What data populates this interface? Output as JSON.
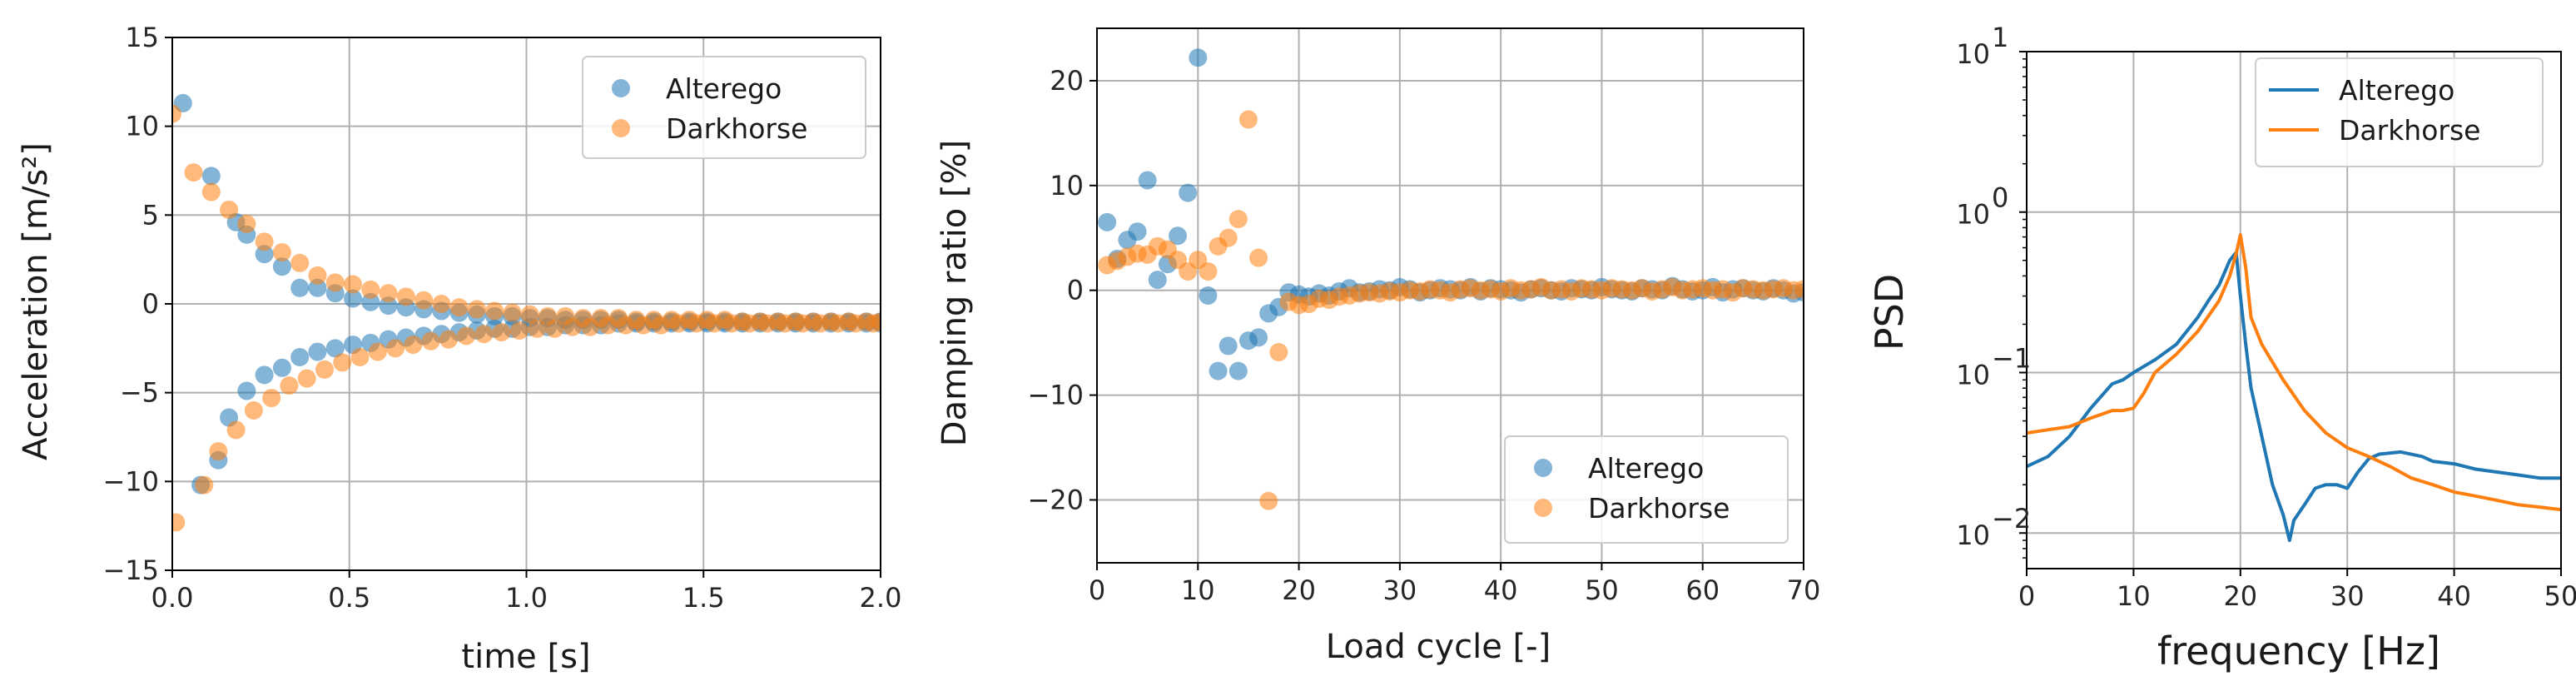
{
  "colors": {
    "alterego": "#1f77b4",
    "darkhorse": "#ff7f0e"
  },
  "chart_data": [
    {
      "type": "scatter",
      "xlabel": "time [s]",
      "ylabel": "Acceleration [m/s²]",
      "xlim": [
        0,
        2.0
      ],
      "ylim": [
        -15,
        15
      ],
      "xticks": [
        "0.0",
        "0.5",
        "1.0",
        "1.5",
        "2.0"
      ],
      "yticks": [
        "−15",
        "−10",
        "−5",
        "0",
        "5",
        "10",
        "15"
      ],
      "grid": true,
      "legend": {
        "position": "top-right",
        "entries": [
          "Alterego",
          "Darkhorse"
        ]
      },
      "series": [
        {
          "name": "Alterego",
          "x": [
            0.03,
            0.11,
            0.18,
            0.21,
            0.26,
            0.31,
            0.36,
            0.41,
            0.46,
            0.51,
            0.56,
            0.61,
            0.66,
            0.71,
            0.76,
            0.81,
            0.86,
            0.91,
            0.96,
            1.01,
            1.06,
            1.11,
            1.16,
            1.21,
            1.26,
            1.31,
            1.36,
            1.41,
            1.46,
            1.51,
            1.56,
            1.61,
            1.66,
            1.71,
            1.76,
            1.81,
            1.86,
            1.91,
            1.96,
            2.0,
            0.08,
            0.13,
            0.16,
            0.21,
            0.26,
            0.31,
            0.36,
            0.41,
            0.46,
            0.51,
            0.56,
            0.61,
            0.66,
            0.71,
            0.76,
            0.81,
            0.86,
            0.91,
            0.96,
            1.01,
            1.06,
            1.11,
            1.16,
            1.21,
            1.26,
            1.31,
            1.36,
            1.41,
            1.46,
            1.51,
            1.56,
            1.61,
            1.66,
            1.71,
            1.76,
            1.81,
            1.86,
            1.91,
            1.96,
            2.0
          ],
          "y": [
            11.3,
            7.2,
            4.6,
            3.9,
            2.8,
            2.1,
            0.9,
            0.9,
            0.6,
            0.3,
            0.1,
            -0.1,
            -0.2,
            -0.3,
            -0.4,
            -0.5,
            -0.6,
            -0.7,
            -0.7,
            -0.8,
            -0.8,
            -0.9,
            -0.9,
            -0.9,
            -0.9,
            -1.0,
            -1.0,
            -1.0,
            -1.0,
            -1.0,
            -1.0,
            -1.0,
            -1.0,
            -1.0,
            -1.0,
            -1.0,
            -1.0,
            -1.0,
            -1.0,
            -1.0,
            -10.2,
            -8.8,
            -6.4,
            -4.9,
            -4.0,
            -3.6,
            -3.0,
            -2.7,
            -2.5,
            -2.3,
            -2.2,
            -2.0,
            -1.9,
            -1.8,
            -1.7,
            -1.6,
            -1.5,
            -1.4,
            -1.4,
            -1.3,
            -1.3,
            -1.2,
            -1.2,
            -1.2,
            -1.1,
            -1.1,
            -1.1,
            -1.1,
            -1.1,
            -1.1,
            -1.1,
            -1.1,
            -1.1,
            -1.1,
            -1.1,
            -1.1,
            -1.1,
            -1.1,
            -1.1,
            -1.1
          ]
        },
        {
          "name": "Darkhorse",
          "x": [
            0.0,
            0.06,
            0.11,
            0.16,
            0.21,
            0.26,
            0.31,
            0.36,
            0.41,
            0.46,
            0.51,
            0.56,
            0.61,
            0.66,
            0.71,
            0.76,
            0.81,
            0.86,
            0.91,
            0.96,
            1.01,
            1.06,
            1.11,
            1.16,
            1.21,
            1.26,
            1.31,
            1.36,
            1.41,
            1.46,
            1.51,
            1.56,
            1.61,
            1.66,
            1.71,
            1.76,
            1.81,
            1.86,
            1.91,
            1.96,
            2.0,
            0.01,
            0.09,
            0.13,
            0.18,
            0.23,
            0.28,
            0.33,
            0.38,
            0.43,
            0.48,
            0.53,
            0.58,
            0.63,
            0.68,
            0.73,
            0.78,
            0.83,
            0.88,
            0.93,
            0.98,
            1.03,
            1.08,
            1.13,
            1.18,
            1.23,
            1.28,
            1.33,
            1.38,
            1.43,
            1.48,
            1.53,
            1.58,
            1.63,
            1.68,
            1.73,
            1.78,
            1.83,
            1.88,
            1.93,
            1.98
          ],
          "y": [
            10.7,
            7.4,
            6.3,
            5.3,
            4.5,
            3.5,
            2.9,
            2.3,
            1.6,
            1.2,
            1.1,
            0.8,
            0.6,
            0.4,
            0.2,
            0.0,
            -0.2,
            -0.3,
            -0.4,
            -0.5,
            -0.6,
            -0.7,
            -0.7,
            -0.8,
            -0.8,
            -0.8,
            -0.9,
            -0.9,
            -0.9,
            -0.9,
            -0.9,
            -0.9,
            -1.0,
            -1.0,
            -1.0,
            -1.0,
            -1.0,
            -1.0,
            -1.0,
            -1.0,
            -1.0,
            -12.3,
            -10.2,
            -8.3,
            -7.1,
            -6.0,
            -5.3,
            -4.6,
            -4.2,
            -3.7,
            -3.3,
            -3.0,
            -2.7,
            -2.5,
            -2.3,
            -2.1,
            -2.0,
            -1.8,
            -1.7,
            -1.6,
            -1.5,
            -1.4,
            -1.4,
            -1.3,
            -1.3,
            -1.2,
            -1.2,
            -1.2,
            -1.2,
            -1.1,
            -1.1,
            -1.1,
            -1.1,
            -1.1,
            -1.1,
            -1.1,
            -1.1,
            -1.1,
            -1.1,
            -1.1,
            -1.1
          ]
        }
      ]
    },
    {
      "type": "scatter",
      "xlabel": "Load cycle [-]",
      "ylabel": "Damping ratio [%]",
      "xlim": [
        0,
        70
      ],
      "ylim": [
        -26,
        25
      ],
      "xticks": [
        "0",
        "10",
        "20",
        "30",
        "40",
        "50",
        "60",
        "70"
      ],
      "yticks": [
        "−20",
        "−10",
        "0",
        "10",
        "20"
      ],
      "grid": true,
      "legend": {
        "position": "lower-right",
        "entries": [
          "Alterego",
          "Darkhorse"
        ]
      },
      "series": [
        {
          "name": "Alterego",
          "x": [
            1,
            2,
            3,
            4,
            5,
            6,
            7,
            8,
            9,
            10,
            11,
            12,
            13,
            14,
            15,
            16,
            17,
            18,
            19,
            20,
            21,
            22,
            23,
            24,
            25,
            26,
            27,
            28,
            29,
            30,
            31,
            32,
            33,
            34,
            35,
            36,
            37,
            38,
            39,
            40,
            41,
            42,
            43,
            44,
            45,
            46,
            47,
            48,
            49,
            50,
            51,
            52,
            53,
            54,
            55,
            56,
            57,
            58,
            59,
            60,
            61,
            62,
            63,
            64,
            65,
            66,
            67,
            68,
            69,
            70
          ],
          "y": [
            6.5,
            3.0,
            4.8,
            5.6,
            10.5,
            1.0,
            2.5,
            5.2,
            9.3,
            22.2,
            -0.5,
            -7.7,
            -5.3,
            -7.7,
            -4.8,
            -4.5,
            -2.2,
            -1.6,
            -0.2,
            -0.4,
            -0.6,
            -0.3,
            -0.5,
            -0.1,
            0.2,
            -0.2,
            -0.1,
            0.1,
            0.0,
            0.3,
            0.1,
            -0.2,
            0.0,
            0.2,
            0.1,
            0.0,
            0.3,
            -0.1,
            0.2,
            0.1,
            0.0,
            -0.2,
            0.1,
            0.2,
            0.0,
            -0.1,
            0.2,
            0.1,
            0.0,
            0.3,
            0.1,
            0.0,
            -0.1,
            0.2,
            0.1,
            0.0,
            0.4,
            0.1,
            -0.1,
            0.0,
            0.3,
            -0.2,
            0.1,
            0.2,
            0.0,
            -0.1,
            0.2,
            0.0,
            -0.3,
            -0.2
          ]
        },
        {
          "name": "Darkhorse",
          "x": [
            1,
            2,
            3,
            4,
            5,
            6,
            7,
            8,
            9,
            10,
            11,
            12,
            13,
            14,
            15,
            16,
            17,
            18,
            19,
            20,
            21,
            22,
            23,
            24,
            25,
            26,
            27,
            28,
            29,
            30,
            31,
            32,
            33,
            34,
            35,
            36,
            37,
            38,
            39,
            40,
            41,
            42,
            43,
            44,
            45,
            46,
            47,
            48,
            49,
            50,
            51,
            52,
            53,
            54,
            55,
            56,
            57,
            58,
            59,
            60,
            61,
            62,
            63,
            64,
            65,
            66,
            67,
            68,
            69,
            70
          ],
          "y": [
            2.4,
            2.8,
            3.2,
            3.5,
            3.4,
            4.2,
            3.9,
            2.9,
            1.8,
            2.9,
            1.8,
            4.2,
            5.0,
            6.8,
            16.3,
            3.1,
            -20.1,
            -5.9,
            -1.1,
            -1.4,
            -1.3,
            -0.8,
            -0.9,
            -0.6,
            -0.5,
            -0.3,
            -0.2,
            -0.3,
            -0.1,
            -0.2,
            0.0,
            -0.1,
            0.1,
            0.0,
            -0.2,
            0.1,
            0.2,
            0.0,
            0.1,
            -0.1,
            0.2,
            0.0,
            0.1,
            0.3,
            0.0,
            0.1,
            -0.1,
            0.2,
            0.1,
            0.0,
            0.2,
            0.1,
            0.0,
            0.2,
            -0.1,
            0.1,
            0.3,
            0.0,
            0.1,
            0.2,
            0.0,
            0.1,
            -0.2,
            0.2,
            0.1,
            0.0,
            0.1,
            0.2,
            0.0,
            0.1
          ]
        }
      ]
    },
    {
      "type": "line",
      "xlabel": "frequency [Hz]",
      "ylabel": "PSD",
      "xlim": [
        0,
        50
      ],
      "yscale": "log",
      "ylim": [
        0.006,
        10
      ],
      "xticks": [
        "0",
        "10",
        "20",
        "30",
        "40",
        "50"
      ],
      "yticks": [
        {
          "base": "10",
          "exp": "1",
          "value": 10
        },
        {
          "base": "10",
          "exp": "0",
          "value": 1
        },
        {
          "base": "10",
          "exp": "−1",
          "value": 0.1
        },
        {
          "base": "10",
          "exp": "−2",
          "value": 0.01
        }
      ],
      "grid": true,
      "legend": {
        "position": "top-right",
        "entries": [
          "Alterego",
          "Darkhorse"
        ]
      },
      "series": [
        {
          "name": "Alterego",
          "x": [
            0,
            2,
            4,
            6,
            8,
            9,
            10,
            12,
            14,
            16,
            17,
            18,
            19,
            19.6,
            20,
            20.5,
            21,
            22,
            23,
            24,
            24.6,
            25,
            26,
            27,
            28,
            29,
            30,
            31,
            32,
            33,
            35,
            37,
            38,
            40,
            42,
            44,
            46,
            48,
            50
          ],
          "y": [
            0.026,
            0.03,
            0.04,
            0.06,
            0.085,
            0.09,
            0.1,
            0.12,
            0.15,
            0.22,
            0.28,
            0.35,
            0.5,
            0.56,
            0.3,
            0.15,
            0.08,
            0.04,
            0.02,
            0.013,
            0.009,
            0.012,
            0.015,
            0.019,
            0.02,
            0.02,
            0.019,
            0.024,
            0.029,
            0.031,
            0.032,
            0.03,
            0.028,
            0.027,
            0.025,
            0.024,
            0.023,
            0.022,
            0.022
          ]
        },
        {
          "name": "Darkhorse",
          "x": [
            0,
            2,
            4,
            6,
            8,
            9,
            10,
            11,
            12,
            14,
            16,
            18,
            19,
            19.6,
            20,
            20.5,
            21,
            22,
            24,
            26,
            28,
            30,
            32,
            34,
            36,
            38,
            40,
            42,
            44,
            46,
            48,
            50
          ],
          "y": [
            0.042,
            0.044,
            0.046,
            0.052,
            0.058,
            0.058,
            0.06,
            0.075,
            0.1,
            0.13,
            0.18,
            0.28,
            0.4,
            0.55,
            0.72,
            0.45,
            0.22,
            0.15,
            0.09,
            0.058,
            0.042,
            0.034,
            0.03,
            0.026,
            0.022,
            0.02,
            0.018,
            0.017,
            0.016,
            0.015,
            0.0145,
            0.014
          ]
        }
      ]
    }
  ]
}
